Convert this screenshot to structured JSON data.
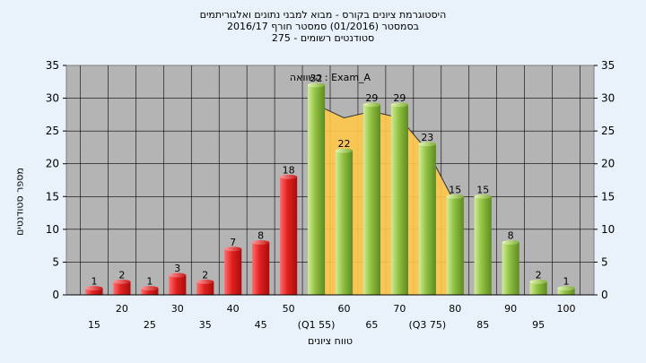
{
  "header": {
    "line1": "היסטוגרמת ציונים בקורס - מבוא למבני נתונים ואלגוריתמים",
    "line2": "בסמסטר  (01/2016)  סמסטר חורף 2016/17",
    "line3": "סטודנטים רשומים - 275"
  },
  "chart_data": {
    "type": "bar",
    "title": "היסטוגרמת ציונים בקורס - מבוא למבני נתונים ואלגוריתמים",
    "ylabel": "מספר סטודנטים",
    "xlabel": "טווח ציונים",
    "ylim": [
      0,
      35
    ],
    "yticks": [
      0,
      5,
      10,
      15,
      20,
      25,
      30,
      35
    ],
    "grid": true,
    "categories": [
      "15",
      "20",
      "25",
      "30",
      "35",
      "40",
      "45",
      "50",
      "(Q1 55)",
      "60",
      "65",
      "70",
      "(Q3 75)",
      "80",
      "85",
      "90",
      "95",
      "100"
    ],
    "values": [
      1,
      2,
      1,
      3,
      2,
      7,
      8,
      18,
      32,
      22,
      29,
      29,
      23,
      15,
      15,
      8,
      2,
      1
    ],
    "colors": {
      "fail": "#e0201e",
      "pass": "#8fc040",
      "area": "#ffc84a",
      "plot_bg": "#b4b4b4"
    },
    "fail_count": 8,
    "comparison_label": "השוואה : Exam_A",
    "comparison_area": [
      {
        "x": "(Q1 55)",
        "y": 29
      },
      {
        "x": "60",
        "y": 27
      },
      {
        "x": "65",
        "y": 28
      },
      {
        "x": "70",
        "y": 27
      },
      {
        "x": "(Q3 75)",
        "y": 22
      },
      {
        "x": "80",
        "y": 14
      }
    ]
  }
}
